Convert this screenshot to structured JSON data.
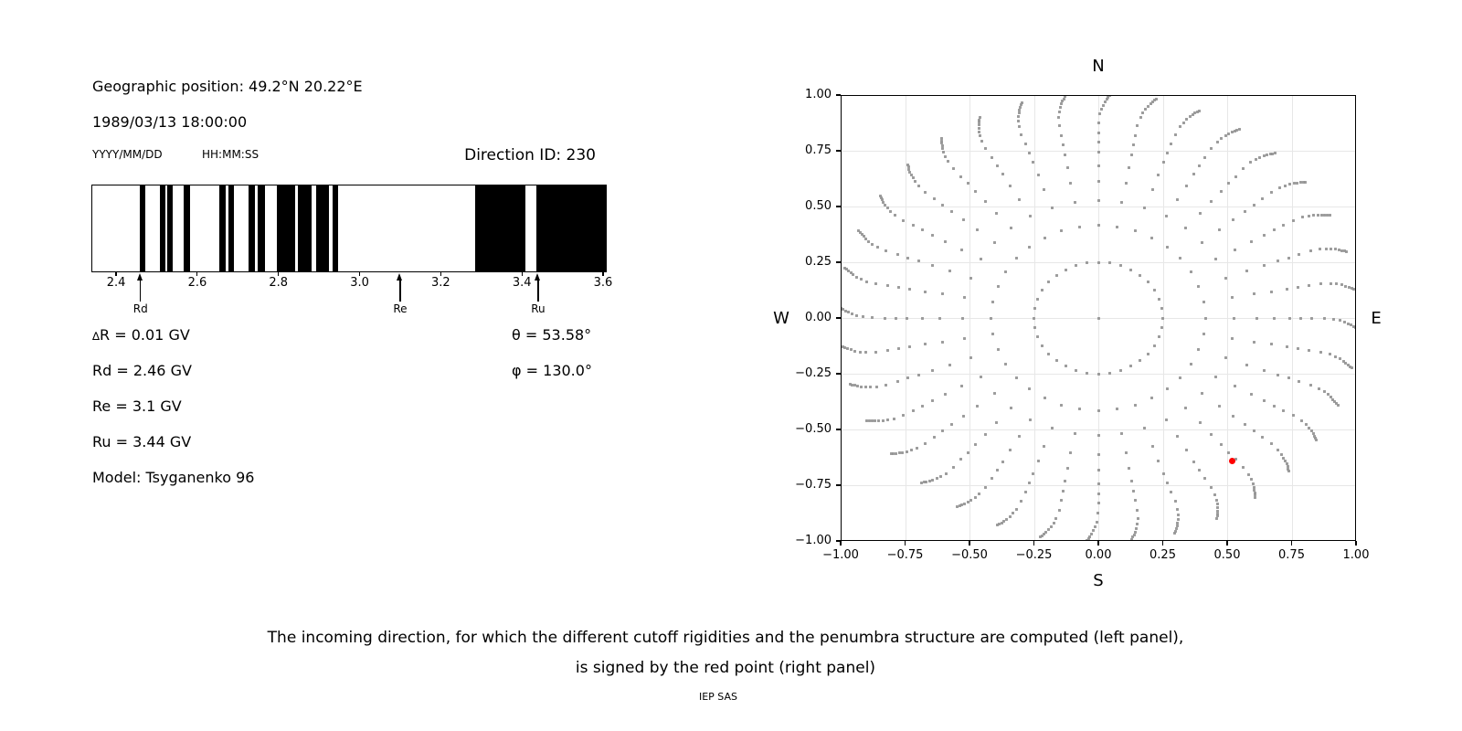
{
  "left_panel": {
    "geo_position": "Geographic position: 49.2°N 20.22°E",
    "datetime": "1989/03/13 18:00:00",
    "date_format_label": "YYYY/MM/DD",
    "time_format_label": "HH:MM:SS",
    "direction_id": "Direction ID: 230",
    "delta_symbol": "∆",
    "delta_rest": "R = 0.01 GV",
    "rd_line": "Rd = 2.46 GV",
    "re_line": "Re = 3.1 GV",
    "ru_line": "Ru = 3.44 GV",
    "model_line": "Model: Tsyganenko 96",
    "theta_line": "θ = 53.58°",
    "phi_line": "φ = 130.0°"
  },
  "chart_data": [
    {
      "type": "bar",
      "subtype": "penumbra-barcode",
      "xlim": [
        2.339,
        3.609
      ],
      "x_ticks": [
        2.4,
        2.6,
        2.8,
        3.0,
        3.2,
        3.4,
        3.6
      ],
      "x_tick_labels": [
        "2.4",
        "2.6",
        "2.8",
        "3.0",
        "3.2",
        "3.4",
        "3.6"
      ],
      "allowed_bands_gv": [
        [
          2.458,
          2.472
        ],
        [
          2.507,
          2.522
        ],
        [
          2.525,
          2.54
        ],
        [
          2.567,
          2.582
        ],
        [
          2.654,
          2.669
        ],
        [
          2.677,
          2.691
        ],
        [
          2.727,
          2.743
        ],
        [
          2.749,
          2.766
        ],
        [
          2.797,
          2.841
        ],
        [
          2.847,
          2.881
        ],
        [
          2.892,
          2.925
        ],
        [
          2.933,
          2.947
        ],
        [
          3.285,
          3.409
        ],
        [
          3.435,
          3.609
        ]
      ],
      "cutoff_markers": [
        {
          "label": "Rd",
          "r_gv": 2.46
        },
        {
          "label": "Re",
          "r_gv": 3.1
        },
        {
          "label": "Ru",
          "r_gv": 3.44
        }
      ],
      "bar_color": "#000000"
    },
    {
      "type": "scatter",
      "compass_labels": {
        "top": "N",
        "bottom": "S",
        "left": "W",
        "right": "E"
      },
      "xlim": [
        -1.0,
        1.0
      ],
      "ylim": [
        -1.0,
        1.0
      ],
      "x_ticks": [
        -1.0,
        -0.75,
        -0.5,
        -0.25,
        0.0,
        0.25,
        0.5,
        0.75,
        1.0
      ],
      "x_tick_labels": [
        "−1.00",
        "−0.75",
        "−0.50",
        "−0.25",
        "0.00",
        "0.25",
        "0.50",
        "0.75",
        "1.00"
      ],
      "y_ticks": [
        1.0,
        0.75,
        0.5,
        0.25,
        0.0,
        -0.25,
        -0.5,
        -0.75,
        -1.0
      ],
      "y_tick_labels": [
        "1.00",
        "0.75",
        "0.50",
        "0.25",
        "0.00",
        "−0.25",
        "−0.50",
        "−0.75",
        "−1.00"
      ],
      "grid": true,
      "grid_color": "#e7e7e7",
      "dot_color": "#919191",
      "direction_grid": {
        "azimuth_start_deg": 0,
        "azimuth_step_deg": 10,
        "azimuth_count": 36,
        "ray_r_values": [
          0.25,
          0.415,
          0.527,
          0.614,
          0.684,
          0.743,
          0.787,
          0.829,
          0.876,
          0.914,
          0.937,
          0.955,
          0.97,
          0.982,
          0.992,
          1.001,
          1.009
        ],
        "center_dot": true,
        "tip_hook_deg_coeff": 150,
        "tip_hook_r_threshold": 0.87
      },
      "red_point": {
        "x": 0.52,
        "y": -0.64,
        "color": "#ff0000"
      }
    }
  ],
  "caption": {
    "line1": "The incoming direction, for which the different cutoff rigidities and the penumbra structure are computed (left panel),",
    "line2": "is signed by the red point (right panel)",
    "credit": "IEP SAS"
  }
}
